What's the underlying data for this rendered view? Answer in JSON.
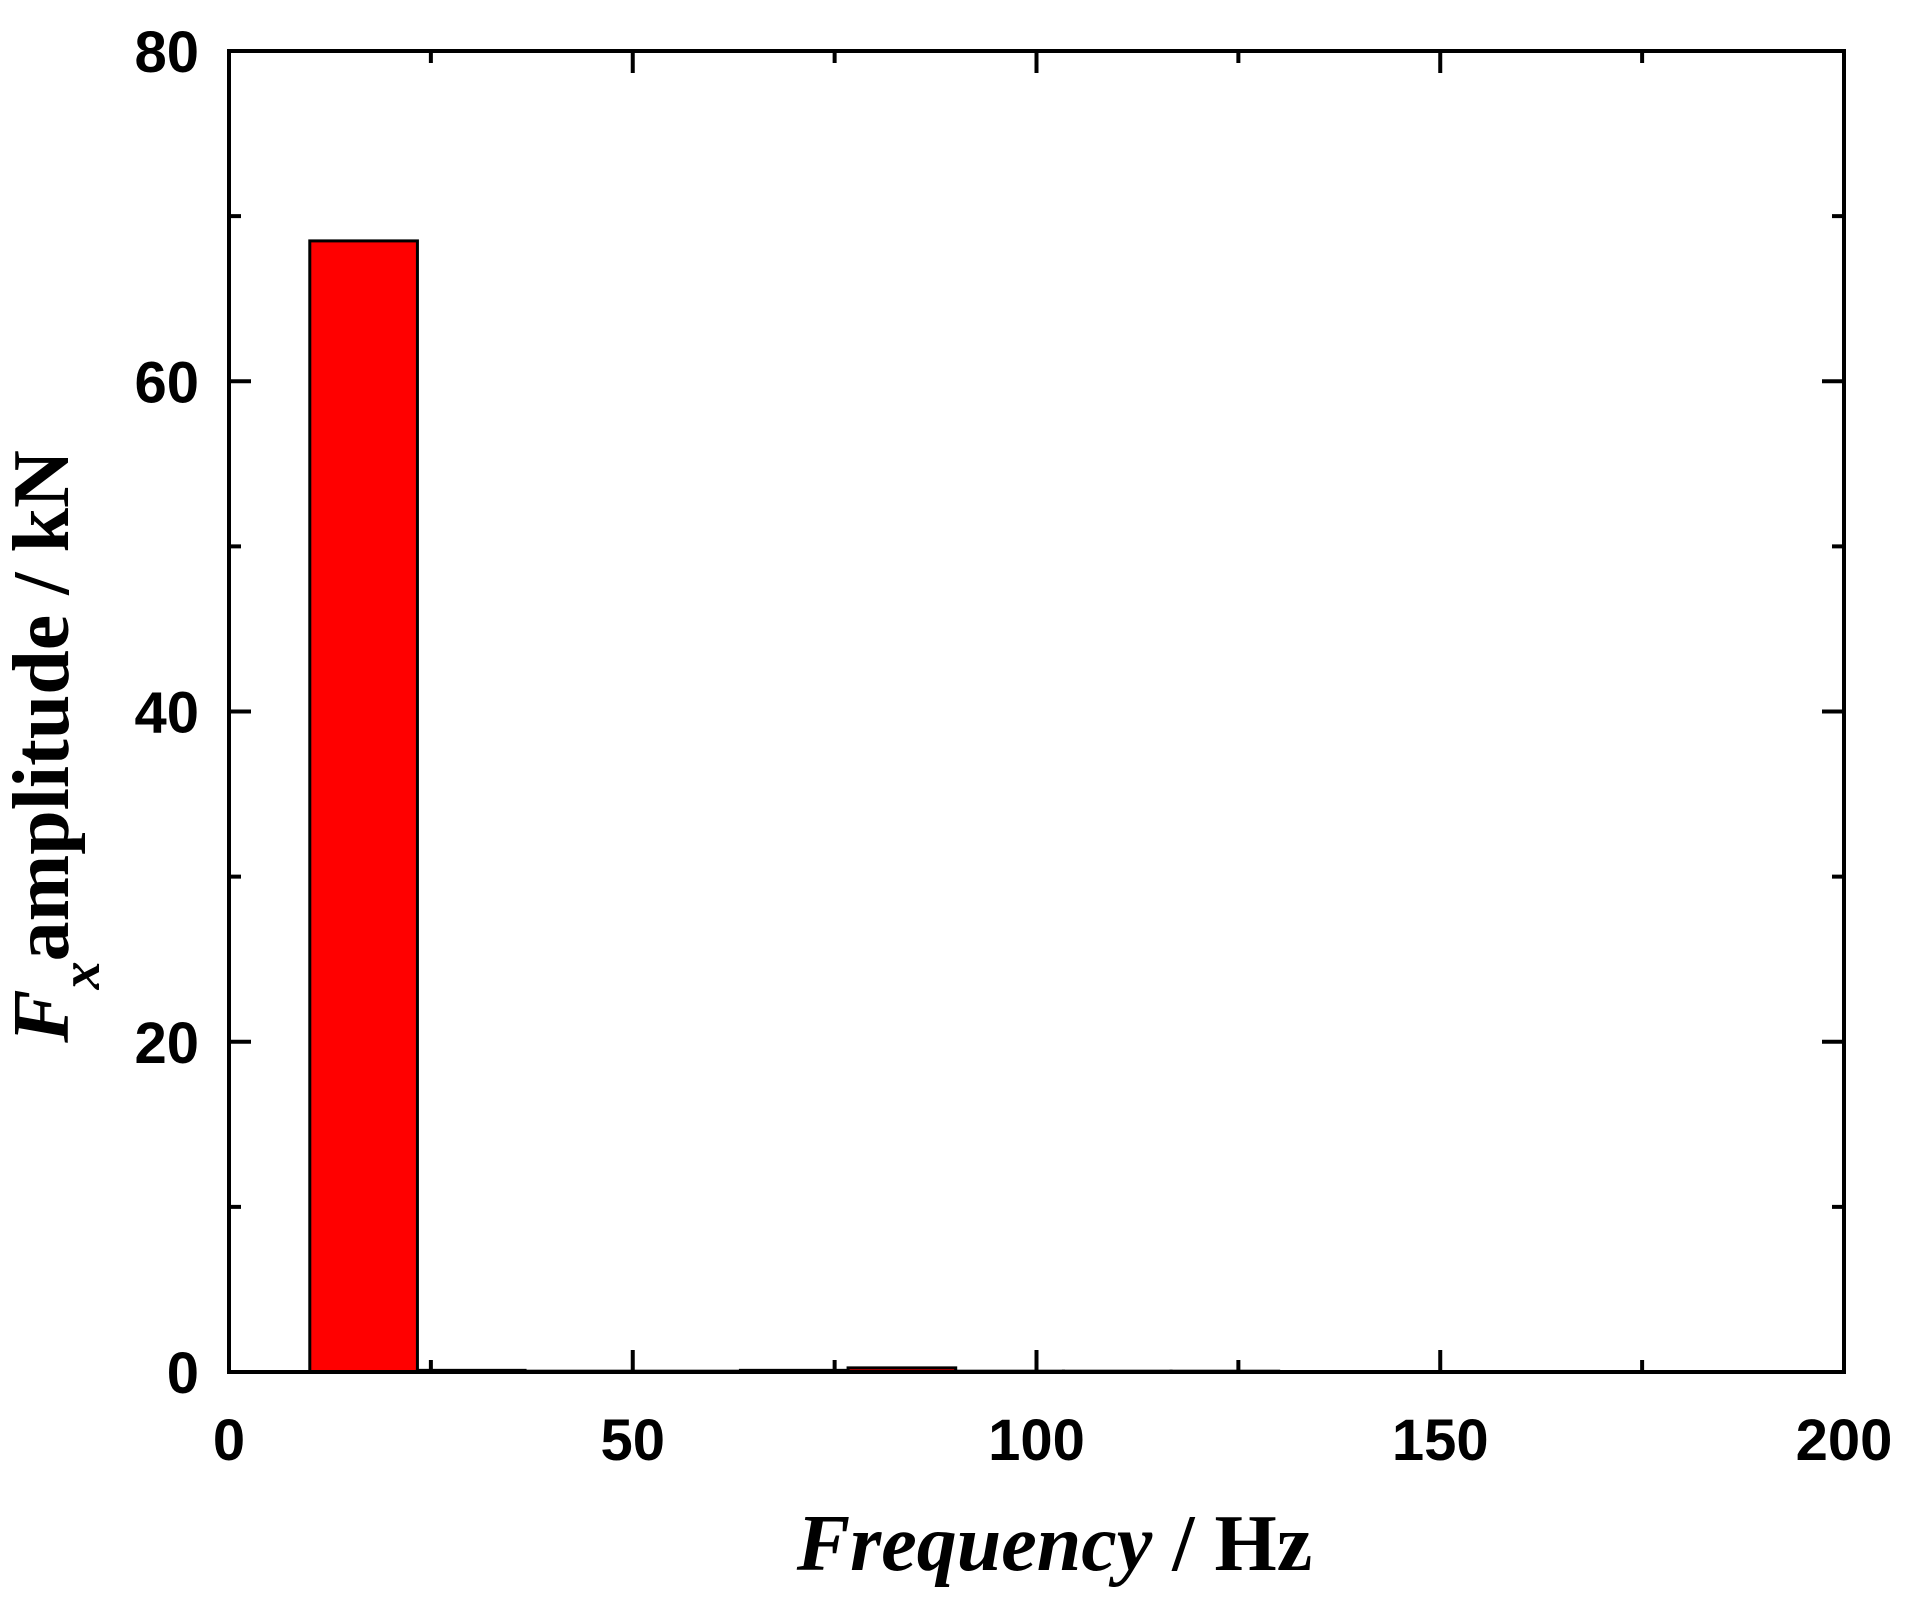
{
  "chart_data": {
    "type": "bar",
    "title": "",
    "xlabel": {
      "var": "Frequency",
      "rest": " / Hz"
    },
    "ylabel": {
      "var": "F",
      "sub": "x",
      "rest": "amplitude / kN"
    },
    "xlim": [
      0,
      200
    ],
    "ylim": [
      0,
      80
    ],
    "xticks": [
      0,
      50,
      100,
      150,
      200
    ],
    "yticks": [
      0,
      20,
      40,
      60,
      80
    ],
    "bin_width": 13.33,
    "bars": [
      {
        "x": 16.67,
        "value": 68.5
      },
      {
        "x": 30.0,
        "value": 0.1
      },
      {
        "x": 43.33,
        "value": 0.05
      },
      {
        "x": 56.67,
        "value": 0.05
      },
      {
        "x": 70.0,
        "value": 0.1
      },
      {
        "x": 83.33,
        "value": 0.25
      },
      {
        "x": 96.67,
        "value": 0.05
      },
      {
        "x": 110.0,
        "value": 0.05
      },
      {
        "x": 123.33,
        "value": 0.05
      }
    ],
    "bar_color": "#ff0000",
    "bar_edge_color": "#000000",
    "grid": false,
    "legend": "none"
  }
}
